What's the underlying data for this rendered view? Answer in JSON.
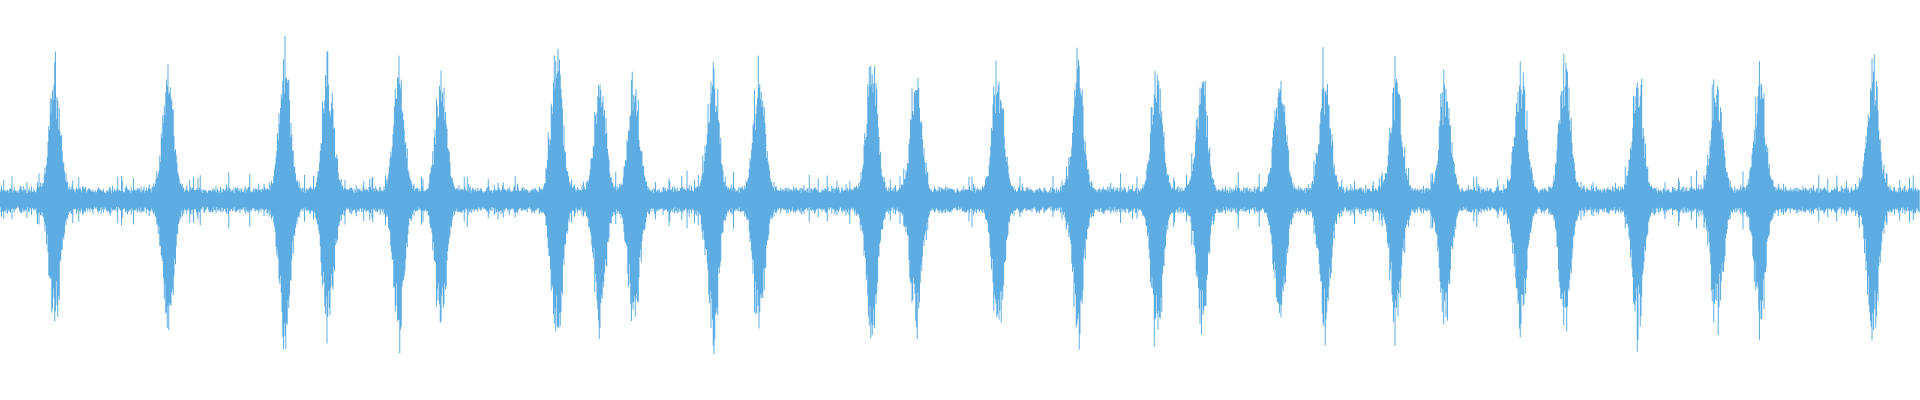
{
  "waveform": {
    "color": "#5dade2",
    "background": "#ffffff"
  }
}
